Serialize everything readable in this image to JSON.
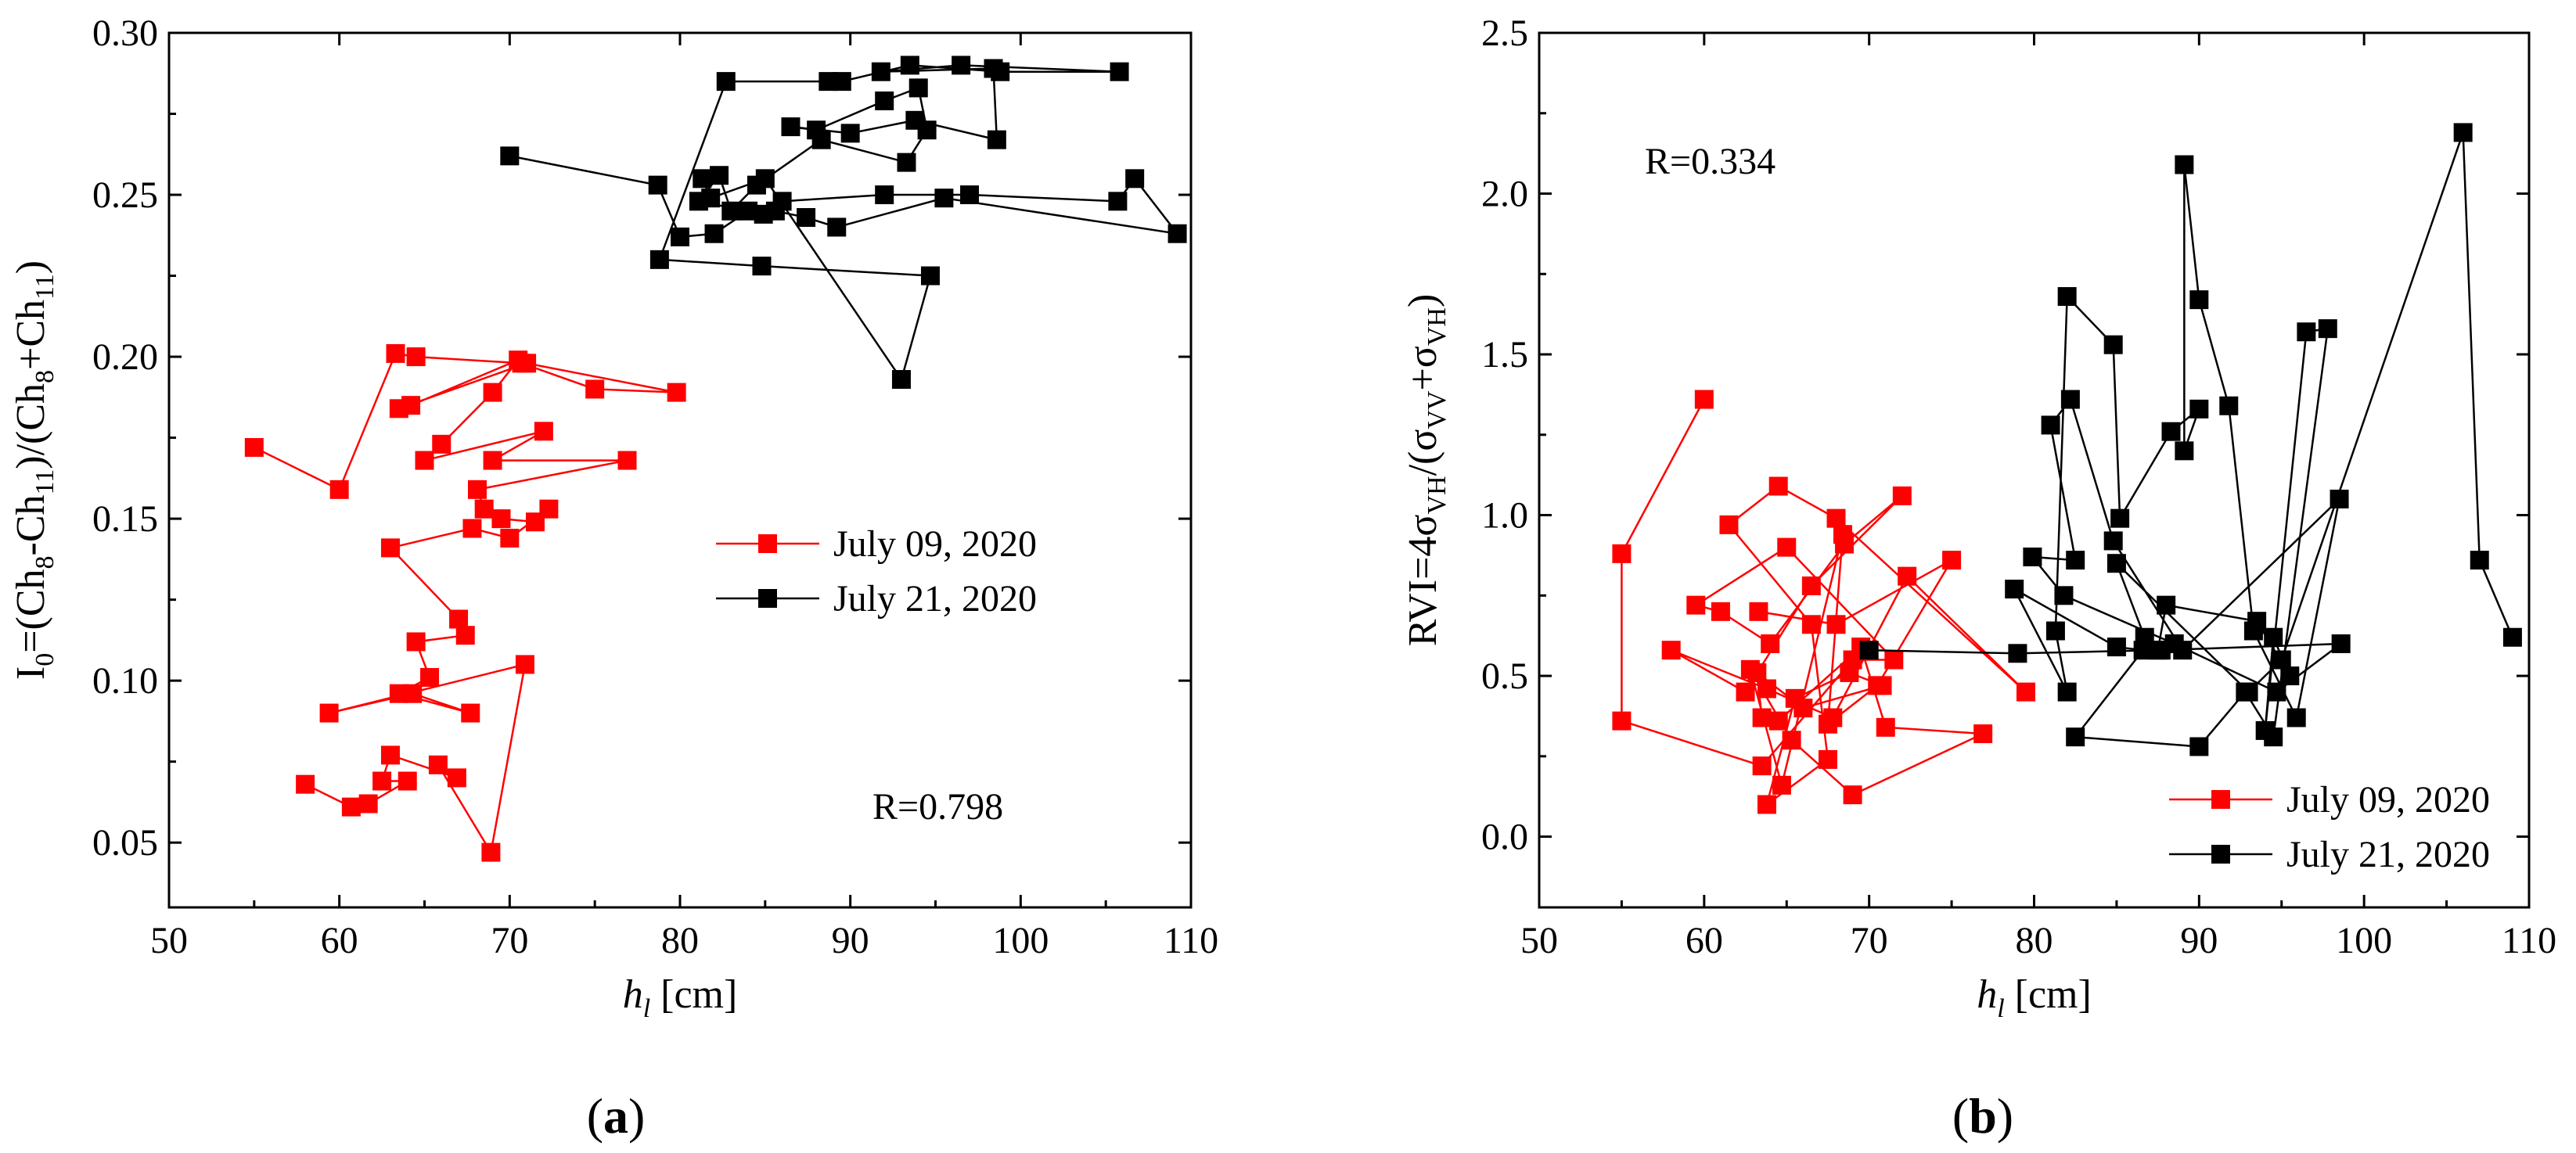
{
  "colors": {
    "series_a": "#ff0000",
    "series_b": "#000000",
    "axis": "#000000"
  },
  "chart_data": [
    {
      "type": "scatter",
      "panel_label": "(a)",
      "xlabel_italic": "h",
      "xlabel_sub": "l",
      "xlabel_unit": " [cm]",
      "ylabel_parts": [
        "I",
        "0",
        "=(Ch",
        "8",
        "-Ch",
        "11",
        ")/(Ch",
        "8",
        "+Ch",
        "11",
        ")"
      ],
      "xlim": [
        50,
        110
      ],
      "ylim": [
        0.03,
        0.3
      ],
      "xticks": [
        50,
        60,
        70,
        80,
        90,
        100,
        110
      ],
      "yticks": [
        0.05,
        0.1,
        0.15,
        0.2,
        0.25,
        0.3
      ],
      "ytick_labels": [
        "0.05",
        "0.10",
        "0.15",
        "0.20",
        "0.25",
        "0.30"
      ],
      "annotation": "R=0.798",
      "legend": [
        "July 09, 2020",
        "July 21, 2020"
      ],
      "series": [
        {
          "name": "July 09, 2020",
          "color": "#ff0000",
          "x": [
            55.0,
            60.0,
            63.3,
            64.5,
            70.7,
            75.0,
            79.8,
            71.0,
            63.5,
            64.2,
            70.5,
            69.0,
            66.0,
            65.0,
            72.0,
            69.0,
            76.9,
            68.1,
            68.5,
            69.5,
            71.5,
            72.3,
            70.0,
            67.8,
            63.0,
            67.0,
            67.4,
            64.5,
            65.3,
            63.5,
            67.7,
            64.3,
            59.4,
            70.9,
            68.9,
            65.8,
            66.9,
            63.0,
            62.5,
            64.0,
            61.7,
            60.7,
            58.0
          ],
          "y": [
            0.172,
            0.159,
            0.201,
            0.2,
            0.198,
            0.19,
            0.189,
            0.198,
            0.184,
            0.185,
            0.199,
            0.189,
            0.173,
            0.168,
            0.177,
            0.168,
            0.168,
            0.159,
            0.153,
            0.15,
            0.149,
            0.153,
            0.144,
            0.147,
            0.141,
            0.119,
            0.114,
            0.112,
            0.101,
            0.096,
            0.09,
            0.096,
            0.09,
            0.105,
            0.047,
            0.074,
            0.07,
            0.077,
            0.069,
            0.069,
            0.062,
            0.061,
            0.068
          ]
        },
        {
          "name": "July 21, 2020",
          "color": "#000000",
          "x": [
            70.0,
            78.7,
            80.0,
            82.0,
            84.0,
            86.0,
            92.0,
            97.0,
            105.7,
            106.7,
            109.2,
            95.5,
            89.2,
            87.4,
            85.6,
            84.9,
            81.1,
            82.3,
            83.0,
            84.5,
            88.3,
            93.3,
            94.5,
            94.0,
            92.0,
            88.0,
            86.5,
            90.0,
            93.8,
            98.6,
            98.4,
            91.8,
            96.5,
            105.8,
            98.8,
            93.5,
            89.5,
            88.7,
            82.7,
            78.8,
            84.8,
            94.7,
            93.0,
            85.0,
            81.8,
            81.3
          ],
          "y": [
            0.262,
            0.253,
            0.237,
            0.238,
            0.245,
            0.248,
            0.25,
            0.25,
            0.248,
            0.255,
            0.238,
            0.249,
            0.24,
            0.243,
            0.245,
            0.244,
            0.248,
            0.256,
            0.245,
            0.253,
            0.267,
            0.26,
            0.27,
            0.283,
            0.279,
            0.27,
            0.271,
            0.269,
            0.273,
            0.267,
            0.289,
            0.288,
            0.29,
            0.288,
            0.288,
            0.29,
            0.285,
            0.285,
            0.285,
            0.23,
            0.228,
            0.225,
            0.193,
            0.255,
            0.249,
            0.255
          ]
        }
      ]
    },
    {
      "type": "scatter",
      "panel_label": "(b)",
      "xlabel_italic": "h",
      "xlabel_sub": "l",
      "xlabel_unit": " [cm]",
      "ylabel_parts": [
        "RVI=4σ",
        "VH",
        "/(σ",
        "VV",
        "+σ",
        "VH",
        ")"
      ],
      "xlim": [
        50,
        110
      ],
      "ylim": [
        -0.22,
        2.5
      ],
      "xticks": [
        50,
        60,
        70,
        80,
        90,
        100,
        110
      ],
      "yticks": [
        0.0,
        0.5,
        1.0,
        1.5,
        2.0,
        2.5
      ],
      "ytick_labels": [
        "0.0",
        "0.5",
        "1.0",
        "1.5",
        "2.0",
        "2.5"
      ],
      "annotation": "R=0.334",
      "legend": [
        "July 09, 2020",
        "July 21, 2020"
      ],
      "series": [
        {
          "name": "July 09, 2020",
          "color": "#ff0000",
          "x": [
            60.0,
            55.0,
            55.0,
            63.5,
            69.0,
            71.5,
            65.0,
            59.5,
            61.0,
            64.0,
            68.5,
            72.0,
            66.5,
            62.5,
            58.0,
            63.8,
            67.8,
            72.3,
            79.5,
            68.0,
            64.5,
            61.5,
            66.5,
            67.5,
            63.8,
            65.5,
            68.8,
            70.8,
            66.0,
            63.2,
            63.5,
            64.5,
            69.5,
            71.0,
            76.9,
            69.0,
            65.3,
            62.8,
            64.7,
            68.4,
            67.5,
            70.5,
            75.0,
            68.0,
            63.3
          ],
          "y": [
            1.36,
            0.88,
            0.36,
            0.22,
            0.55,
            0.55,
            0.9,
            0.72,
            0.7,
            0.6,
            0.91,
            1.06,
            0.78,
            0.45,
            0.58,
            0.46,
            0.37,
            0.81,
            0.45,
            0.99,
            1.09,
            0.97,
            0.66,
            0.24,
            0.1,
            0.43,
            0.51,
            0.47,
            0.4,
            0.51,
            0.37,
            0.36,
            0.59,
            0.34,
            0.32,
            0.13,
            0.3,
            0.52,
            0.16,
            0.94,
            0.35,
            0.47,
            0.86,
            0.66,
            0.7
          ]
        },
        {
          "name": "July 21, 2020",
          "color": "#000000",
          "x": [
            70.0,
            79.0,
            87.5,
            88.0,
            93.5,
            95.5,
            94.5,
            94.0,
            96.5,
            97.8,
            94.5,
            92.8,
            90.0,
            82.5,
            86.6,
            85.0,
            78.8,
            82.0,
            81.3,
            82.0,
            84.8,
            85.2,
            88.3,
            90.0,
            89.1,
            89.1,
            90.0,
            91.8,
            93.3,
            95.9,
            98.5,
            89.0,
            84.8,
            82.2,
            81.0,
            82.5,
            79.9,
            81.8,
            88.5,
            94.7,
            98.6,
            87.7,
            86.7,
            85.0,
            93.0,
            95.0,
            106.0,
            107.0,
            109.0
          ],
          "y": [
            0.58,
            0.57,
            0.58,
            0.72,
            0.67,
            0.5,
            0.62,
            0.33,
            1.57,
            1.58,
            0.31,
            0.45,
            0.28,
            0.31,
            0.58,
            0.59,
            0.77,
            0.45,
            0.64,
            1.68,
            1.53,
            0.99,
            1.26,
            1.33,
            1.2,
            2.09,
            1.67,
            1.34,
            0.64,
            0.37,
            1.05,
            0.58,
            0.92,
            1.36,
            1.28,
            0.86,
            0.87,
            0.75,
            0.6,
            0.45,
            0.6,
            0.58,
            0.62,
            0.85,
            0.45,
            0.55,
            2.19,
            0.86,
            0.62
          ]
        }
      ]
    }
  ]
}
